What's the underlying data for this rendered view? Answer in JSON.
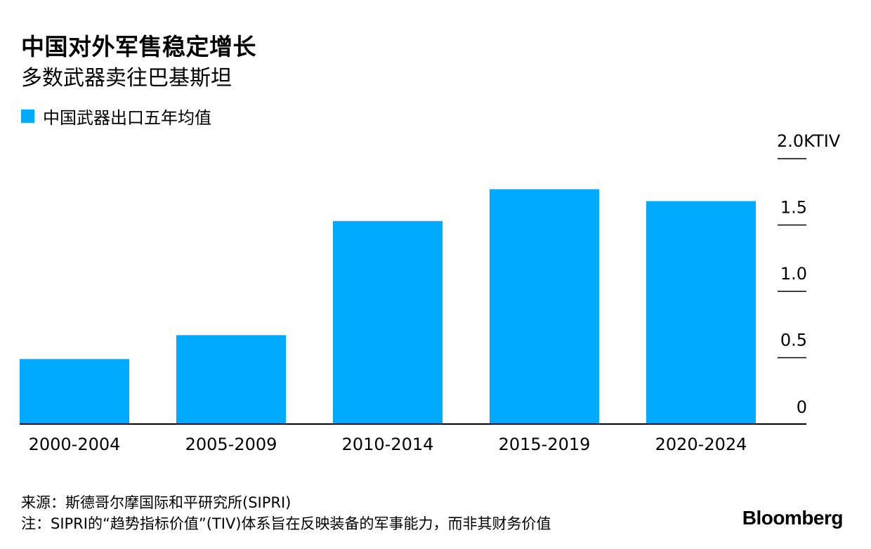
{
  "header": {
    "title": "中国对外军售稳定增长",
    "subtitle": "多数武器卖往巴基斯坦"
  },
  "legend": {
    "label": "中国武器出口五年均值",
    "color": "#00AAFF"
  },
  "chart_data": {
    "type": "bar",
    "title": "中国对外军售稳定增长",
    "subtitle": "多数武器卖往巴基斯坦",
    "categories": [
      "2000-2004",
      "2005-2009",
      "2010-2014",
      "2015-2019",
      "2020-2024"
    ],
    "series": [
      {
        "name": "中国武器出口五年均值",
        "values": [
          0.49,
          0.67,
          1.53,
          1.77,
          1.68
        ]
      }
    ],
    "unit": "KTIV",
    "ylim": [
      0,
      2.0
    ],
    "yticks": [
      {
        "value": 0,
        "label": "0"
      },
      {
        "value": 0.5,
        "label": "0.5"
      },
      {
        "value": 1.0,
        "label": "1.0"
      },
      {
        "value": 1.5,
        "label": "1.5"
      },
      {
        "value": 2.0,
        "label": "2.0KTIV"
      }
    ],
    "grid": false,
    "axis_side": "right",
    "legend_position": "top-left",
    "color": "#00AAFF"
  },
  "footer": {
    "source": "来源：斯德哥尔摩国际和平研究所(SIPRI)",
    "note": "注：SIPRI的“趋势指标价值”(TIV)体系旨在反映装备的军事能力，而非其财务价值",
    "brand": "Bloomberg"
  }
}
